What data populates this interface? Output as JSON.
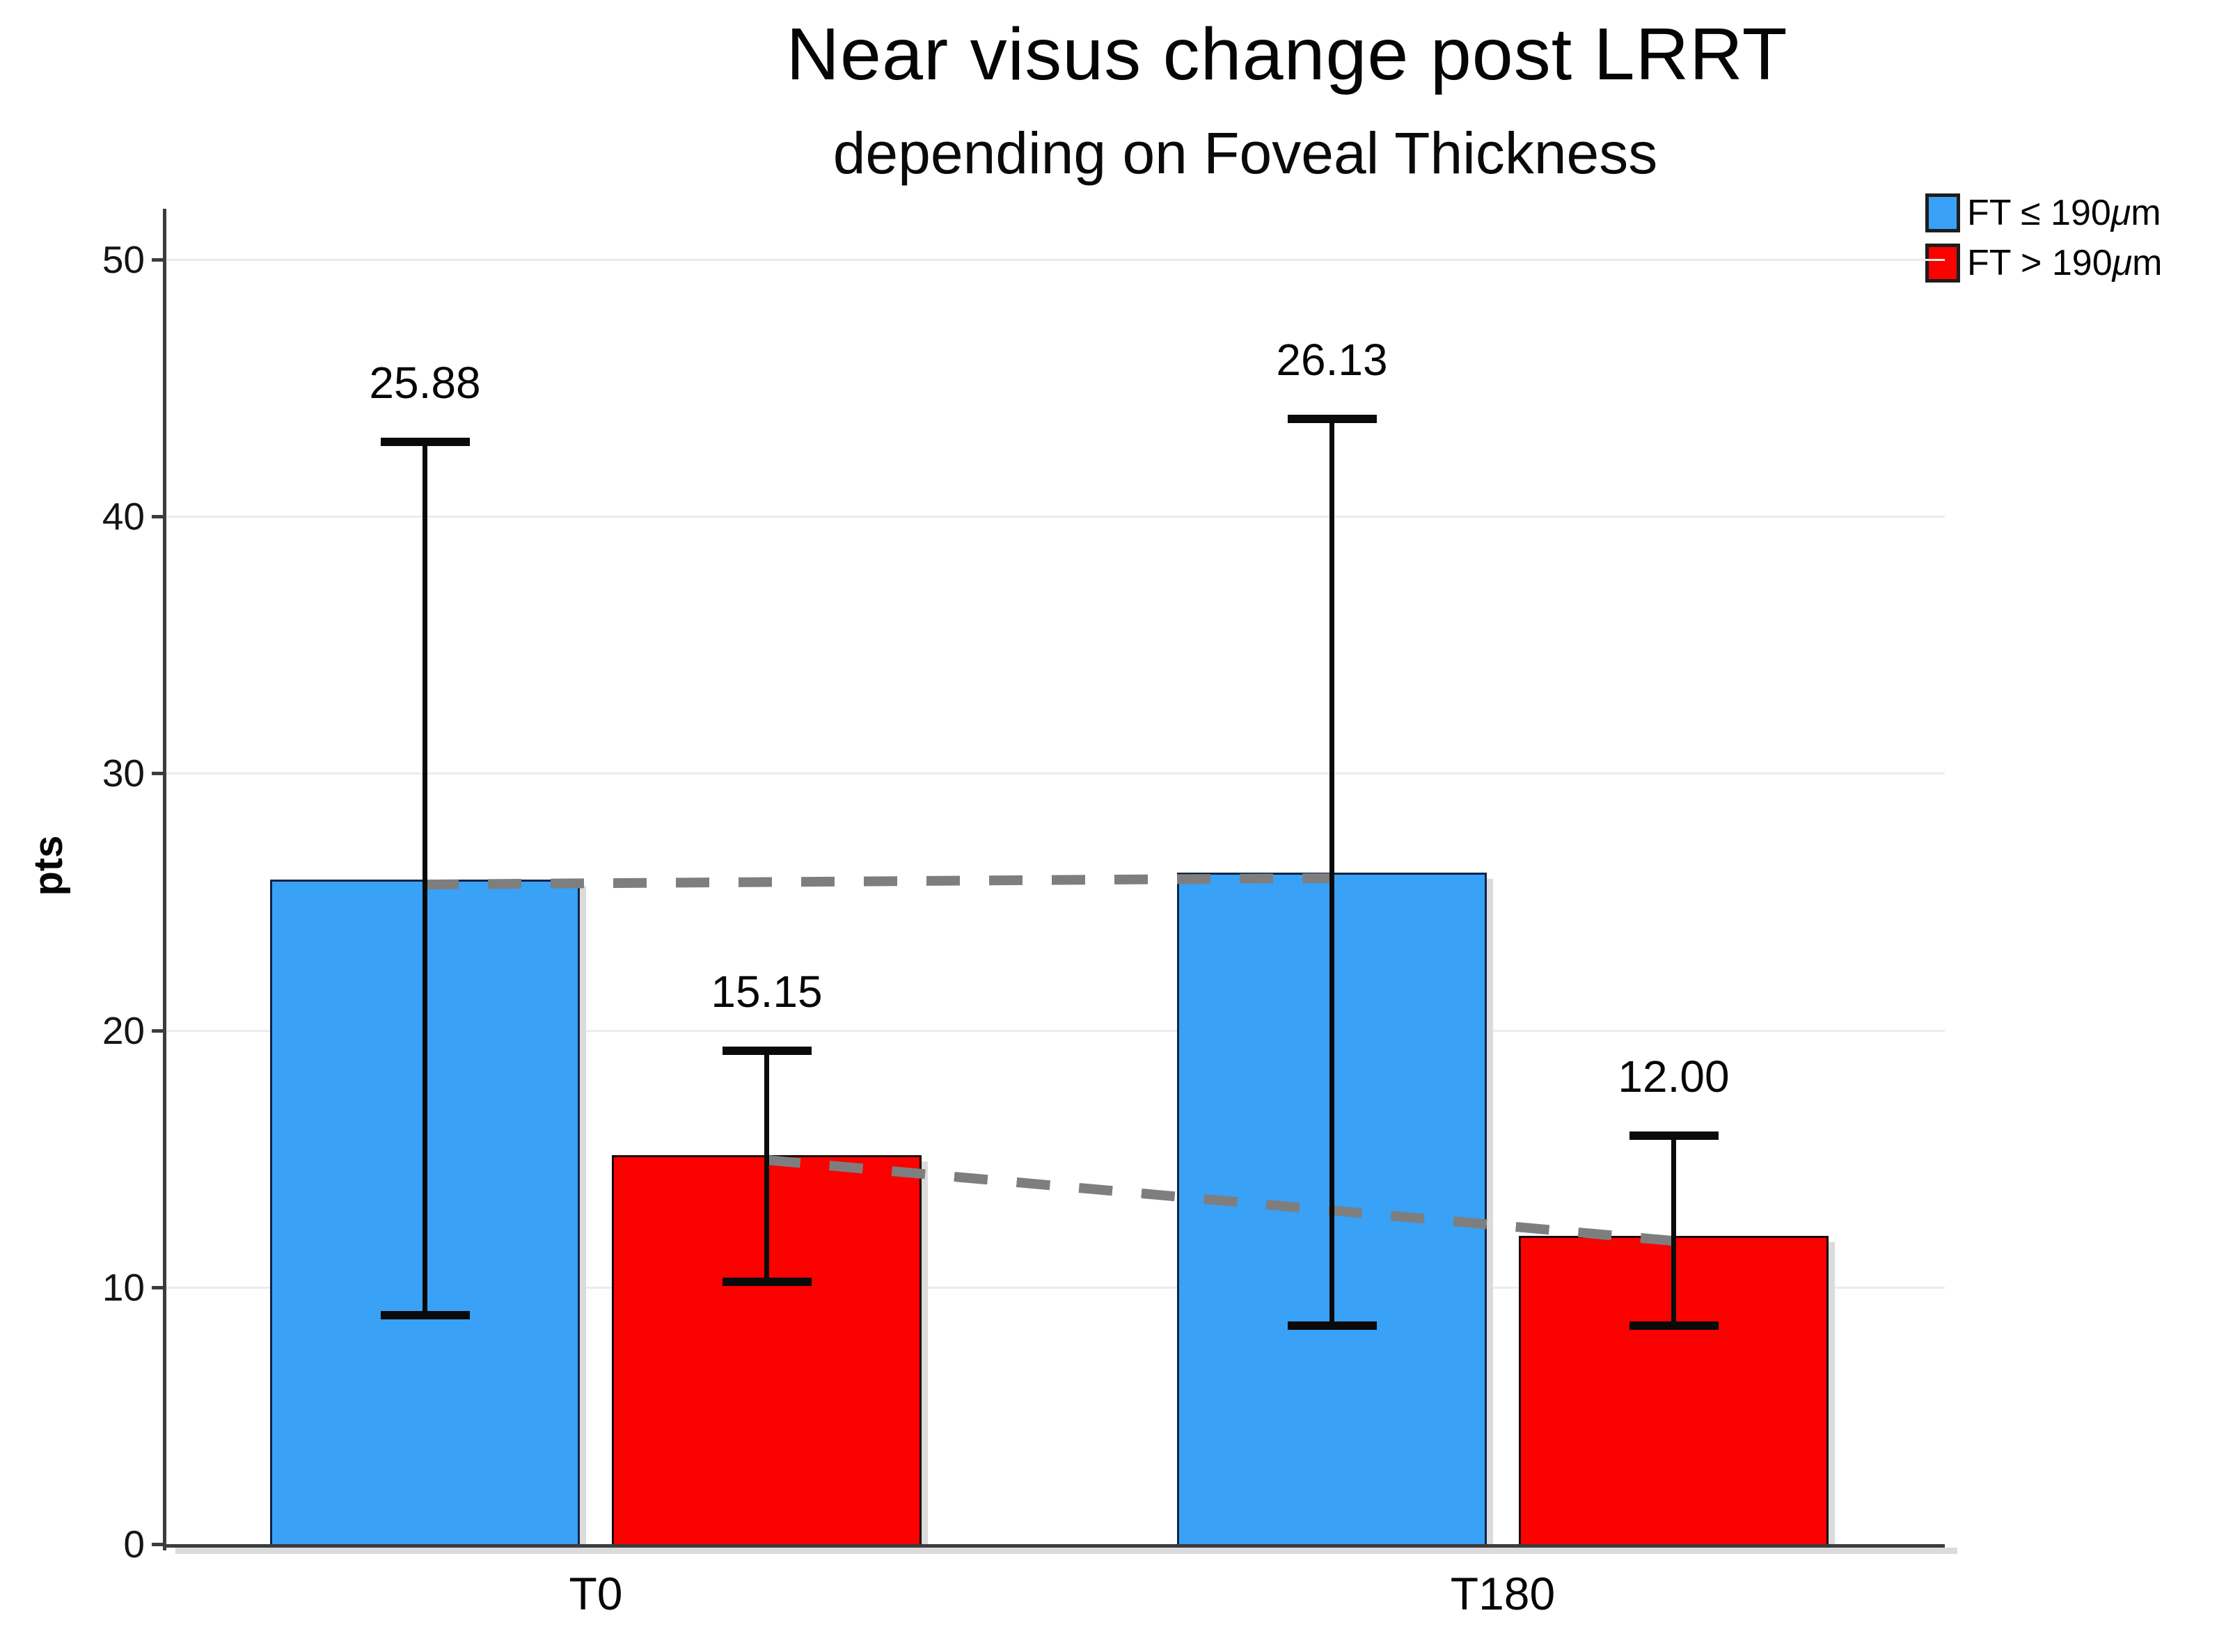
{
  "title": "Near visus change post LRRT",
  "subtitle": "depending on Foveal Thickness",
  "y_axis": {
    "label": "pts"
  },
  "legend": [
    {
      "prefix": "FT ≤ 190",
      "mu": "μ",
      "suffix": "m",
      "label": "FT ≤ 190μm",
      "color": "#39A1F6"
    },
    {
      "prefix": "FT > 190",
      "mu": "μ",
      "suffix": "m",
      "label": "FT > 190μm",
      "color": "#FB0100"
    }
  ],
  "chart_data": {
    "type": "bar",
    "title": "Near visus change post LRRT",
    "subtitle": "depending on Foveal Thickness",
    "ylabel": "pts",
    "xlabel": "",
    "ylim": [
      0,
      50
    ],
    "yticks": [
      0,
      10,
      20,
      30,
      40,
      50
    ],
    "grid": true,
    "legend_position": "top-right",
    "categories": [
      "T0",
      "T180"
    ],
    "series": [
      {
        "name": "FT ≤ 190μm",
        "color": "#39A1F6",
        "border": "#0B2545",
        "values": [
          25.88,
          26.13
        ],
        "labels": [
          "25.88",
          "26.13"
        ],
        "error_low": [
          8.9,
          8.5
        ],
        "error_high": [
          42.9,
          43.8
        ]
      },
      {
        "name": "FT > 190μm",
        "color": "#FB0100",
        "border": "#1A0505",
        "values": [
          15.15,
          12.0
        ],
        "labels": [
          "15.15",
          "12.00"
        ],
        "error_low": [
          10.2,
          8.5
        ],
        "error_high": [
          19.2,
          15.9
        ]
      }
    ],
    "connectors": [
      {
        "series": 0,
        "style": "dashed",
        "color": "#7E7E7E"
      },
      {
        "series": 1,
        "style": "dashed",
        "color": "#7E7E7E"
      }
    ]
  }
}
